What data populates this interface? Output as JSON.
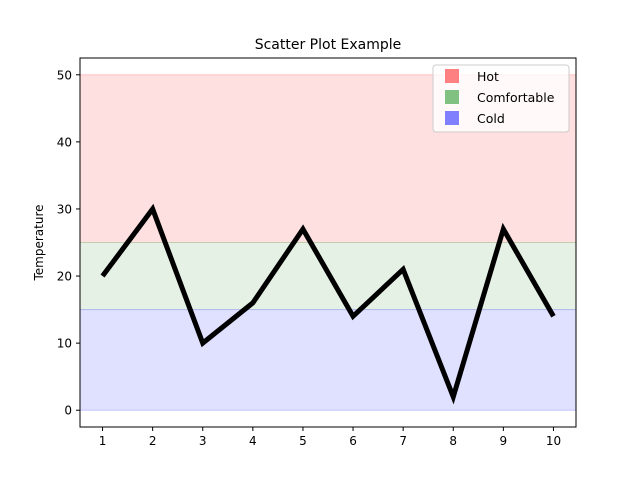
{
  "chart_data": {
    "type": "line",
    "title": "Scatter Plot Example",
    "xlabel": "",
    "ylabel": "Temperature",
    "x": [
      1,
      2,
      3,
      4,
      5,
      6,
      7,
      8,
      9,
      10
    ],
    "xticks": [
      1,
      2,
      3,
      4,
      5,
      6,
      7,
      8,
      9,
      10
    ],
    "yticks": [
      0,
      10,
      20,
      30,
      40,
      50
    ],
    "xlim": [
      0.55,
      10.45
    ],
    "ylim": [
      -2.5,
      52.5
    ],
    "series": [
      {
        "values": [
          20,
          30,
          10,
          16,
          27,
          14,
          21,
          2,
          27,
          14
        ],
        "color": "#000000"
      }
    ],
    "bands": [
      {
        "name": "Hot",
        "from": 25,
        "to": 50,
        "color": "#ff8080",
        "fill": "#ffe0e0"
      },
      {
        "name": "Comfortable",
        "from": 15,
        "to": 25,
        "color": "#80c080",
        "fill": "#e6f1e6"
      },
      {
        "name": "Cold",
        "from": 0,
        "to": 15,
        "color": "#8080ff",
        "fill": "#e0e0ff"
      }
    ],
    "grid": false,
    "legend_position": "top-right"
  }
}
